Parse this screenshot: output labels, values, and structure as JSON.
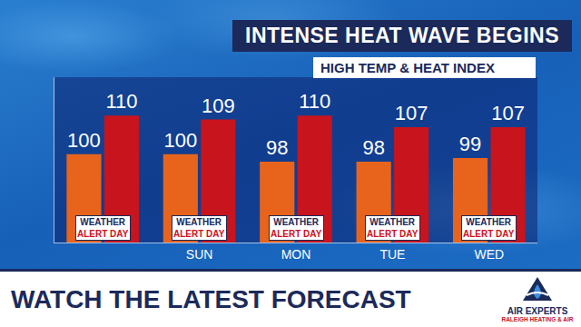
{
  "chart_data": {
    "type": "bar",
    "title": "INTENSE HEAT WAVE BEGINS",
    "subtitle": "HIGH TEMP & HEAT INDEX",
    "categories": [
      null,
      "SUN",
      "MON",
      "TUE",
      "WED"
    ],
    "series": [
      {
        "color": "#e8641c",
        "values": [
          100,
          100,
          98,
          98,
          99
        ]
      },
      {
        "color": "#c8141c",
        "values": [
          110,
          109,
          110,
          107,
          107
        ]
      }
    ],
    "ylim": [
      77,
      120
    ],
    "yticks": [],
    "data_labels": true,
    "tick_labels": "x",
    "grid": false
  },
  "badge": {
    "line1": "WEATHER",
    "line2": "ALERT DAY"
  },
  "footer": {
    "text": "WATCH THE LATEST FORECAST"
  },
  "logo": {
    "name": "AIR EXPERTS",
    "tagline": "RALEIGH HEATING & AIR"
  }
}
